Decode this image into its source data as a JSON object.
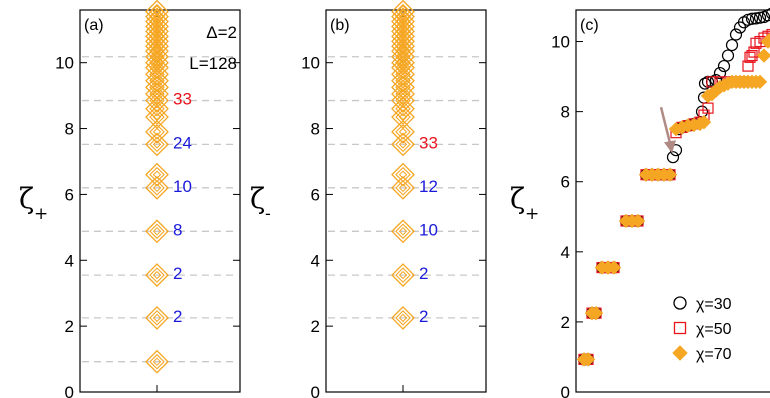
{
  "chart_data": [
    {
      "type": "scatter",
      "panel_label": "(a)",
      "ylabel": "ζ",
      "ylabel_sub": "+",
      "annotations": [
        "Δ=2",
        "L=128"
      ],
      "ylim": [
        0,
        11.6
      ],
      "yticks": [
        0,
        2,
        4,
        6,
        8,
        10
      ],
      "dashed_levels": [
        0.92,
        2.25,
        3.55,
        4.88,
        6.2,
        7.52,
        8.85,
        10.18
      ],
      "points": [
        0.92,
        2.25,
        3.55,
        4.88,
        6.2,
        6.6,
        7.52,
        7.9,
        8.35,
        8.6,
        8.85,
        9.05,
        9.25,
        9.45,
        9.65,
        9.85,
        10.0,
        10.18,
        10.35,
        10.5,
        10.65,
        10.8,
        10.95,
        11.1,
        11.25,
        11.4,
        11.55
      ],
      "counts": [
        {
          "y": 2.25,
          "label": "2",
          "color": "#1a1adb"
        },
        {
          "y": 3.55,
          "label": "2",
          "color": "#1a1adb"
        },
        {
          "y": 4.88,
          "label": "8",
          "color": "#1a1adb"
        },
        {
          "y": 6.2,
          "label": "10",
          "color": "#1a1adb"
        },
        {
          "y": 7.52,
          "label": "24",
          "color": "#1a1adb"
        },
        {
          "y": 8.85,
          "label": "33",
          "color": "#e8141e"
        }
      ],
      "marker_color": "#f5a623"
    },
    {
      "type": "scatter",
      "panel_label": "(b)",
      "ylabel": "ζ",
      "ylabel_sub": "-",
      "ylim": [
        0,
        11.6
      ],
      "yticks": [
        0,
        2,
        4,
        6,
        8,
        10
      ],
      "dashed_levels": [
        2.25,
        3.55,
        4.88,
        6.2,
        7.52,
        8.85,
        10.18
      ],
      "points": [
        2.25,
        3.55,
        4.88,
        6.2,
        6.6,
        7.52,
        7.9,
        8.35,
        8.6,
        8.85,
        9.05,
        9.25,
        9.45,
        9.65,
        9.85,
        10.0,
        10.18,
        10.35,
        10.5,
        10.65,
        10.8,
        10.95,
        11.1,
        11.25,
        11.4,
        11.55
      ],
      "counts": [
        {
          "y": 2.25,
          "label": "2",
          "color": "#1a1adb"
        },
        {
          "y": 3.55,
          "label": "2",
          "color": "#1a1adb"
        },
        {
          "y": 4.88,
          "label": "10",
          "color": "#1a1adb"
        },
        {
          "y": 6.2,
          "label": "12",
          "color": "#1a1adb"
        },
        {
          "y": 7.52,
          "label": "33",
          "color": "#e8141e"
        }
      ],
      "marker_color": "#f5a623"
    },
    {
      "type": "scatter",
      "panel_label": "(c)",
      "ylabel": "ζ",
      "ylabel_sub": "+",
      "ylim": [
        0,
        10.9
      ],
      "yticks": [
        0,
        2,
        4,
        6,
        8,
        10
      ],
      "xlim": [
        0,
        1
      ],
      "legend_position": "bottom-right",
      "series": [
        {
          "name": "χ=30",
          "marker": "circle",
          "color": "#000000",
          "points": [
            [
              0.04,
              0.93
            ],
            [
              0.06,
              0.93
            ],
            [
              0.08,
              2.25
            ],
            [
              0.1,
              2.25
            ],
            [
              0.13,
              3.55
            ],
            [
              0.16,
              3.55
            ],
            [
              0.19,
              3.55
            ],
            [
              0.25,
              4.88
            ],
            [
              0.28,
              4.88
            ],
            [
              0.31,
              4.88
            ],
            [
              0.35,
              6.2
            ],
            [
              0.38,
              6.2
            ],
            [
              0.41,
              6.2
            ],
            [
              0.44,
              6.2
            ],
            [
              0.47,
              6.2
            ],
            [
              0.485,
              6.7
            ],
            [
              0.5,
              6.9
            ],
            [
              0.515,
              7.5
            ],
            [
              0.53,
              7.55
            ],
            [
              0.56,
              7.6
            ],
            [
              0.59,
              7.65
            ],
            [
              0.62,
              7.7
            ],
            [
              0.63,
              8.0
            ],
            [
              0.64,
              8.4
            ],
            [
              0.645,
              8.8
            ],
            [
              0.66,
              8.85
            ],
            [
              0.68,
              8.85
            ],
            [
              0.7,
              8.9
            ],
            [
              0.72,
              9.1
            ],
            [
              0.74,
              9.3
            ],
            [
              0.76,
              9.6
            ],
            [
              0.78,
              9.9
            ],
            [
              0.8,
              10.2
            ],
            [
              0.82,
              10.4
            ],
            [
              0.84,
              10.55
            ],
            [
              0.86,
              10.62
            ],
            [
              0.88,
              10.65
            ],
            [
              0.9,
              10.66
            ],
            [
              0.92,
              10.68
            ],
            [
              0.94,
              10.7
            ],
            [
              0.96,
              10.75
            ],
            [
              0.98,
              10.8
            ]
          ]
        },
        {
          "name": "χ=50",
          "marker": "square",
          "color": "#e8141e",
          "points": [
            [
              0.04,
              0.93
            ],
            [
              0.06,
              0.93
            ],
            [
              0.08,
              2.25
            ],
            [
              0.1,
              2.25
            ],
            [
              0.13,
              3.55
            ],
            [
              0.16,
              3.55
            ],
            [
              0.19,
              3.55
            ],
            [
              0.25,
              4.88
            ],
            [
              0.28,
              4.88
            ],
            [
              0.31,
              4.88
            ],
            [
              0.35,
              6.2
            ],
            [
              0.38,
              6.2
            ],
            [
              0.41,
              6.2
            ],
            [
              0.44,
              6.2
            ],
            [
              0.47,
              6.2
            ],
            [
              0.5,
              7.4
            ],
            [
              0.53,
              7.55
            ],
            [
              0.56,
              7.6
            ],
            [
              0.59,
              7.65
            ],
            [
              0.62,
              7.7
            ],
            [
              0.64,
              7.9
            ],
            [
              0.66,
              8.1
            ],
            [
              0.68,
              8.85
            ],
            [
              0.72,
              8.85
            ],
            [
              0.76,
              8.85
            ],
            [
              0.8,
              8.85
            ],
            [
              0.84,
              8.85
            ],
            [
              0.86,
              9.3
            ],
            [
              0.87,
              9.55
            ],
            [
              0.88,
              9.6
            ],
            [
              0.89,
              9.7
            ],
            [
              0.9,
              9.95
            ],
            [
              0.92,
              10.0
            ],
            [
              0.94,
              10.1
            ],
            [
              0.96,
              10.15
            ],
            [
              0.98,
              10.2
            ]
          ]
        },
        {
          "name": "χ=70",
          "marker": "diamond",
          "color": "#f5a623",
          "points": [
            [
              0.04,
              0.93
            ],
            [
              0.06,
              0.93
            ],
            [
              0.08,
              2.25
            ],
            [
              0.1,
              2.25
            ],
            [
              0.13,
              3.55
            ],
            [
              0.16,
              3.55
            ],
            [
              0.19,
              3.55
            ],
            [
              0.25,
              4.88
            ],
            [
              0.28,
              4.88
            ],
            [
              0.31,
              4.88
            ],
            [
              0.35,
              6.2
            ],
            [
              0.38,
              6.2
            ],
            [
              0.41,
              6.2
            ],
            [
              0.44,
              6.2
            ],
            [
              0.47,
              6.2
            ],
            [
              0.5,
              7.5
            ],
            [
              0.53,
              7.55
            ],
            [
              0.56,
              7.6
            ],
            [
              0.59,
              7.62
            ],
            [
              0.62,
              7.65
            ],
            [
              0.64,
              7.7
            ],
            [
              0.66,
              8.45
            ],
            [
              0.68,
              8.5
            ],
            [
              0.7,
              8.6
            ],
            [
              0.72,
              8.7
            ],
            [
              0.74,
              8.75
            ],
            [
              0.76,
              8.8
            ],
            [
              0.78,
              8.85
            ],
            [
              0.8,
              8.85
            ],
            [
              0.82,
              8.85
            ],
            [
              0.84,
              8.85
            ],
            [
              0.86,
              8.85
            ],
            [
              0.88,
              8.85
            ],
            [
              0.9,
              8.85
            ],
            [
              0.92,
              8.85
            ],
            [
              0.94,
              9.6
            ],
            [
              0.96,
              10.0
            ],
            [
              0.98,
              10.1
            ]
          ]
        }
      ],
      "arrow_target": {
        "x": 0.485,
        "y": 6.7
      },
      "arrow_color": "#b08a85"
    }
  ]
}
